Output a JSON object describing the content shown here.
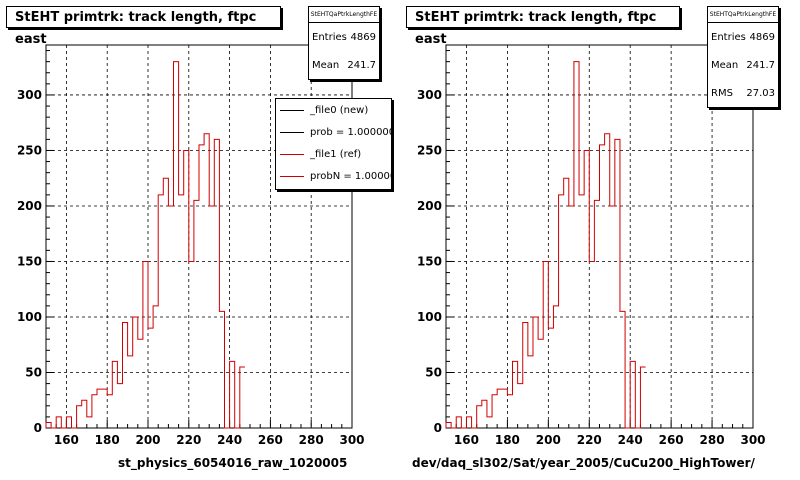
{
  "chart_data": [
    {
      "type": "histogram",
      "title": "StEHT primtrk: track length, ftpc east",
      "xlabel": "st_physics_6054016_raw_1020005",
      "ylabel": "",
      "xlim": [
        150,
        300
      ],
      "ylim": [
        0,
        345
      ],
      "grid": true,
      "bin_width": 2.5,
      "bin_start": 150,
      "xticks": [
        160,
        180,
        200,
        220,
        240,
        260,
        280,
        300
      ],
      "yticks": [
        0,
        50,
        100,
        150,
        200,
        250,
        300
      ],
      "stats": {
        "header": "StEHTQaPtrkLengthFE",
        "rows": [
          {
            "label": "Entries",
            "value": "4869"
          },
          {
            "label": "Mean",
            "value": "241.7"
          }
        ]
      },
      "legend": {
        "placement": "top-right",
        "entries": [
          {
            "text": "_file0 (new)",
            "color": "#000000"
          },
          {
            "text": "prob = 1.000000",
            "color": "#000000"
          },
          {
            "text": "_file1 (ref)",
            "color": "#d00000"
          },
          {
            "text": "probN = 1.000000",
            "color": "#d00000"
          }
        ]
      },
      "series": [
        {
          "color": "#d00000",
          "values": [
            5,
            0,
            10,
            0,
            10,
            0,
            20,
            25,
            10,
            30,
            35,
            35,
            30,
            60,
            40,
            95,
            65,
            100,
            80,
            150,
            90,
            110,
            210,
            225,
            200,
            330,
            210,
            250,
            150,
            205,
            255,
            265,
            200,
            260,
            105,
            0,
            60,
            0,
            55
          ]
        }
      ]
    },
    {
      "type": "histogram",
      "title": "StEHT primtrk: track length, ftpc east",
      "xlabel": "dev/daq_sl302/Sat/year_2005/CuCu200_HighTower/",
      "ylabel": "",
      "xlim": [
        150,
        300
      ],
      "ylim": [
        0,
        345
      ],
      "grid": true,
      "bin_width": 2.5,
      "bin_start": 150,
      "xticks": [
        160,
        180,
        200,
        220,
        240,
        260,
        280,
        300
      ],
      "yticks": [
        0,
        50,
        100,
        150,
        200,
        250,
        300
      ],
      "stats": {
        "header": "StEHTQaPtrkLengthFE",
        "rows": [
          {
            "label": "Entries",
            "value": "4869"
          },
          {
            "label": "Mean",
            "value": "241.7"
          },
          {
            "label": "RMS",
            "value": "27.03"
          }
        ]
      },
      "series": [
        {
          "color": "#d00000",
          "values": [
            5,
            0,
            10,
            0,
            10,
            0,
            20,
            25,
            10,
            30,
            35,
            35,
            30,
            60,
            40,
            95,
            65,
            100,
            80,
            150,
            90,
            110,
            210,
            225,
            200,
            330,
            210,
            250,
            150,
            205,
            255,
            265,
            200,
            260,
            105,
            0,
            60,
            0,
            55
          ]
        }
      ]
    }
  ]
}
